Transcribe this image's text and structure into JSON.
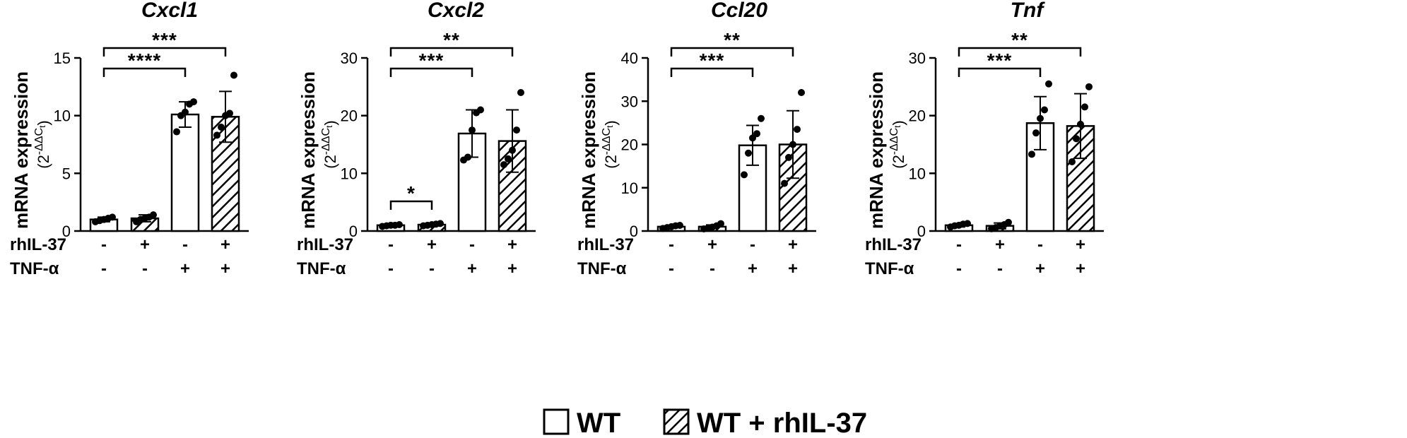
{
  "chart_data": [
    {
      "type": "bar",
      "title": "Cxcl1",
      "ylabel": "mRNA expression",
      "ylabel_unit": "(2-ΔΔCt)",
      "ylim": [
        0,
        15
      ],
      "yticks": [
        0,
        5,
        10,
        15
      ],
      "conditions": [
        "-/-",
        "+/-",
        "-/+",
        "+/+"
      ],
      "rhIL37": [
        "-",
        "+",
        "-",
        "+"
      ],
      "TNFa": [
        "-",
        "-",
        "+",
        "+"
      ],
      "groups": [
        "WT",
        "WT + rhIL-37",
        "WT",
        "WT + rhIL-37"
      ],
      "means": [
        1.0,
        1.1,
        10.1,
        9.9
      ],
      "sd": [
        0.2,
        0.3,
        1.1,
        2.2
      ],
      "points": [
        [
          0.8,
          0.9,
          1.0,
          1.1,
          1.2
        ],
        [
          0.8,
          1.0,
          1.1,
          1.2,
          1.4
        ],
        [
          8.6,
          10.0,
          10.3,
          11.0,
          11.2
        ],
        [
          8.3,
          9.0,
          10.0,
          10.2,
          13.5
        ]
      ],
      "significance": [
        {
          "from": 0,
          "to": 2,
          "label": "****"
        },
        {
          "from": 0,
          "to": 3,
          "label": "***"
        }
      ]
    },
    {
      "type": "bar",
      "title": "Cxcl2",
      "ylabel": "mRNA expression",
      "ylabel_unit": "(2-ΔΔCt)",
      "ylim": [
        0,
        30
      ],
      "yticks": [
        0,
        10,
        20,
        30
      ],
      "conditions": [
        "-/-",
        "+/-",
        "-/+",
        "+/+"
      ],
      "rhIL37": [
        "-",
        "+",
        "-",
        "+"
      ],
      "TNFa": [
        "-",
        "-",
        "+",
        "+"
      ],
      "groups": [
        "WT",
        "WT + rhIL-37",
        "WT",
        "WT + rhIL-37"
      ],
      "means": [
        1.0,
        1.1,
        16.9,
        15.6
      ],
      "sd": [
        0.1,
        0.2,
        4.1,
        5.4
      ],
      "points": [
        [
          0.8,
          0.9,
          1.0,
          1.0,
          1.1
        ],
        [
          0.9,
          1.0,
          1.1,
          1.2,
          1.3
        ],
        [
          12.3,
          12.8,
          17.5,
          20.5,
          21.0
        ],
        [
          11.5,
          12.5,
          14.0,
          17.5,
          24.0
        ]
      ],
      "significance": [
        {
          "from": 0,
          "to": 1,
          "label": "*"
        },
        {
          "from": 0,
          "to": 2,
          "label": "***"
        },
        {
          "from": 0,
          "to": 3,
          "label": "**"
        }
      ]
    },
    {
      "type": "bar",
      "title": "Ccl20",
      "ylabel": "mRNA expression",
      "ylabel_unit": "(2-ΔΔCt)",
      "ylim": [
        0,
        40
      ],
      "yticks": [
        0,
        10,
        20,
        30,
        40
      ],
      "conditions": [
        "-/-",
        "+/-",
        "-/+",
        "+/+"
      ],
      "rhIL37": [
        "-",
        "+",
        "-",
        "+"
      ],
      "TNFa": [
        "-",
        "-",
        "+",
        "+"
      ],
      "groups": [
        "WT",
        "WT + rhIL-37",
        "WT",
        "WT + rhIL-37"
      ],
      "means": [
        1.0,
        1.0,
        19.8,
        20.0
      ],
      "sd": [
        0.3,
        0.4,
        4.6,
        7.8
      ],
      "points": [
        [
          0.6,
          0.8,
          1.0,
          1.2,
          1.3
        ],
        [
          0.5,
          0.7,
          0.9,
          1.2,
          1.7
        ],
        [
          13.0,
          18.0,
          21.5,
          22.5,
          26.0
        ],
        [
          11.0,
          17.0,
          20.0,
          23.5,
          32.0
        ]
      ],
      "significance": [
        {
          "from": 0,
          "to": 2,
          "label": "***"
        },
        {
          "from": 0,
          "to": 3,
          "label": "**"
        }
      ]
    },
    {
      "type": "bar",
      "title": "Tnf",
      "ylabel": "mRNA expression",
      "ylabel_unit": "(2-ΔΔCt)",
      "ylim": [
        0,
        30
      ],
      "yticks": [
        0,
        10,
        20,
        30
      ],
      "conditions": [
        "-/-",
        "+/-",
        "-/+",
        "+/+"
      ],
      "rhIL37": [
        "-",
        "+",
        "-",
        "+"
      ],
      "TNFa": [
        "-",
        "-",
        "+",
        "+"
      ],
      "groups": [
        "WT",
        "WT + rhIL-37",
        "WT",
        "WT + rhIL-37"
      ],
      "means": [
        1.0,
        0.9,
        18.7,
        18.2
      ],
      "sd": [
        0.3,
        0.5,
        4.6,
        5.6
      ],
      "points": [
        [
          0.7,
          0.9,
          1.0,
          1.2,
          1.3
        ],
        [
          0.4,
          0.6,
          0.9,
          1.1,
          1.5
        ],
        [
          13.3,
          17.0,
          19.5,
          21.0,
          25.5
        ],
        [
          12.0,
          16.0,
          18.5,
          21.5,
          25.0
        ]
      ],
      "significance": [
        {
          "from": 0,
          "to": 2,
          "label": "***"
        },
        {
          "from": 0,
          "to": 3,
          "label": "**"
        }
      ]
    }
  ],
  "row_labels": {
    "rhil37": "rhIL-37",
    "tnfa": "TNF-α"
  },
  "legend": [
    {
      "label": "WT",
      "pattern": "open"
    },
    {
      "label": "WT + rhIL-37",
      "pattern": "hatched"
    }
  ],
  "colors": {
    "bar_fill": "#ffffff",
    "stroke": "#000000",
    "points": "#000000"
  }
}
